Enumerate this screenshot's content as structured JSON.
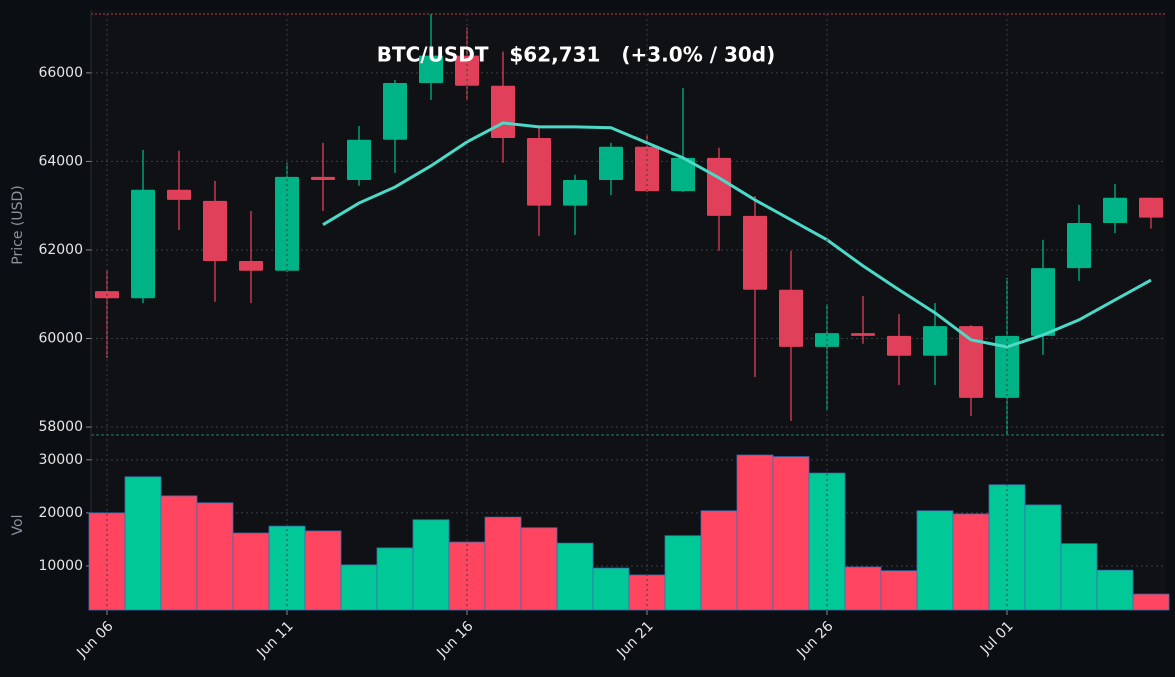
{
  "chart_data": [
    {
      "type": "candlestick",
      "title": "BTC/USDT   $62,731   (+3.0% / 30d)",
      "ylabel": "Price (USD)",
      "open": [
        61070,
        60910,
        63360,
        63110,
        61750,
        61530,
        63650,
        63580,
        64490,
        65770,
        66390,
        65710,
        64530,
        63000,
        63580,
        64330,
        63330,
        64080,
        62770,
        61100,
        59810,
        60120,
        60060,
        59610,
        60280,
        58660,
        60060,
        61590,
        62610,
        63180
      ],
      "high": [
        61550,
        64260,
        64240,
        63560,
        62880,
        63970,
        64420,
        64800,
        65840,
        67330,
        67020,
        66480,
        64800,
        63700,
        64420,
        64620,
        65660,
        64310,
        63220,
        61980,
        60780,
        60960,
        60550,
        60800,
        60300,
        61370,
        62230,
        63020,
        63490,
        63180
      ],
      "low": [
        59560,
        60800,
        62450,
        60830,
        60800,
        61500,
        62880,
        63450,
        63740,
        65390,
        65390,
        63970,
        62320,
        62340,
        63240,
        63310,
        63310,
        61980,
        59130,
        58140,
        58380,
        59880,
        58950,
        58950,
        58250,
        57820,
        59630,
        61300,
        62380,
        62480
      ],
      "close": [
        60910,
        63360,
        63130,
        61750,
        61530,
        63650,
        63580,
        64490,
        65770,
        66390,
        65710,
        64530,
        63000,
        63580,
        64330,
        63330,
        64080,
        62770,
        61100,
        59810,
        60120,
        60060,
        59610,
        60280,
        58660,
        60060,
        61590,
        62610,
        63180,
        62731
      ],
      "up_color": "#00b386",
      "down_color": "#e0405a",
      "ma": {
        "color": "#4dd9c8",
        "values": [
          null,
          null,
          null,
          null,
          null,
          null,
          62570,
          63060,
          63420,
          63900,
          64440,
          64870,
          64780,
          64780,
          64760,
          64420,
          64080,
          63630,
          63130,
          62680,
          62230,
          61640,
          61100,
          60580,
          59970,
          59810,
          60080,
          60420,
          60870,
          61320
        ]
      },
      "ylim": [
        57820,
        67330
      ],
      "yticks": [
        58000,
        60000,
        62000,
        64000,
        66000
      ],
      "grid": true
    },
    {
      "type": "bar",
      "ylabel": "Vol",
      "categories": [
        "Jun 06",
        null,
        null,
        null,
        null,
        "Jun 11",
        null,
        null,
        null,
        null,
        "Jun 16",
        null,
        null,
        null,
        null,
        "Jun 21",
        null,
        null,
        null,
        null,
        "Jun 26",
        null,
        null,
        null,
        null,
        "Jul 01",
        null,
        null,
        null,
        null
      ],
      "values": [
        20000,
        26800,
        23200,
        21900,
        16200,
        17500,
        16600,
        10200,
        13400,
        18700,
        14500,
        19200,
        17200,
        14300,
        9600,
        8300,
        15700,
        20400,
        30900,
        30600,
        27500,
        9800,
        9100,
        20400,
        19800,
        25300,
        21500,
        14200,
        9200,
        4700
      ],
      "up_color": "#00c896",
      "down_color": "#ff4560",
      "edge_color": "#3a6fb0",
      "ylim": [
        1700,
        34300
      ],
      "yticks": [
        10000,
        20000,
        30000
      ],
      "grid": true
    }
  ]
}
